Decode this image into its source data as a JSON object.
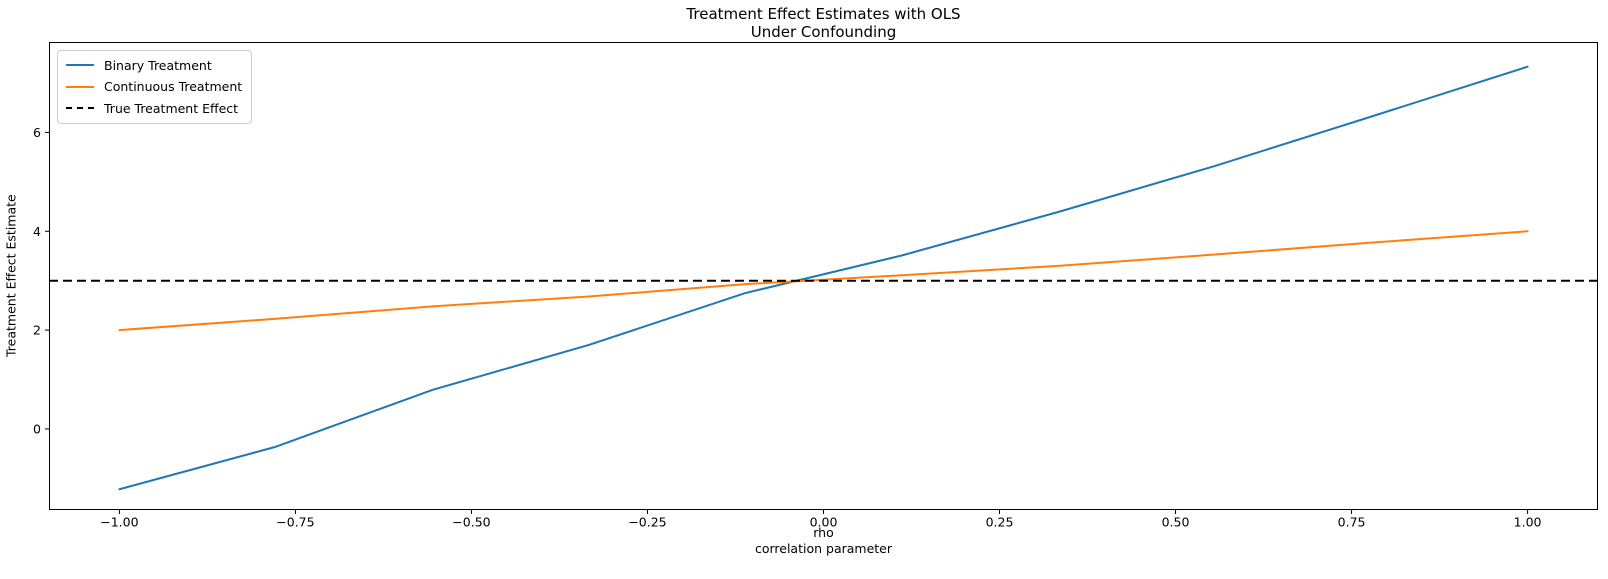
{
  "chart_data": {
    "type": "line",
    "title": "Treatment Effect Estimates with OLS\nUnder Confounding",
    "xlabel": "rho\ncorrelation parameter",
    "ylabel": "Treatment Effect Estimate",
    "xlim": [
      -1.1,
      1.1
    ],
    "ylim": [
      -1.64,
      7.83
    ],
    "x_ticks": [
      -1.0,
      -0.75,
      -0.5,
      -0.25,
      0.0,
      0.25,
      0.5,
      0.75,
      1.0
    ],
    "x_tick_labels": [
      "−1.00",
      "−0.75",
      "−0.50",
      "−0.25",
      "0.00",
      "0.25",
      "0.50",
      "0.75",
      "1.00"
    ],
    "y_ticks": [
      0,
      2,
      4,
      6
    ],
    "y_tick_labels": [
      "0",
      "2",
      "4",
      "6"
    ],
    "grid": false,
    "legend_position": "upper left",
    "x": [
      -1.0,
      -0.7778,
      -0.5556,
      -0.3333,
      -0.1111,
      0.1111,
      0.3333,
      0.5556,
      0.7778,
      1.0
    ],
    "series": [
      {
        "name": "Binary Treatment",
        "color": "#1f77b4",
        "line_style": "solid",
        "values": [
          -1.22,
          -0.36,
          0.79,
          1.7,
          2.75,
          3.51,
          4.39,
          5.32,
          6.32,
          7.33
        ]
      },
      {
        "name": "Continuous Treatment",
        "color": "#ff7f0e",
        "line_style": "solid",
        "values": [
          2.0,
          2.23,
          2.48,
          2.68,
          2.93,
          3.11,
          3.3,
          3.53,
          3.77,
          4.0
        ]
      },
      {
        "name": "True Treatment Effect",
        "color": "#000000",
        "line_style": "dashed",
        "kind": "hline",
        "value": 3.0
      }
    ],
    "axis_color": "#000000",
    "text_color": "#000000",
    "background_color": "#ffffff"
  }
}
